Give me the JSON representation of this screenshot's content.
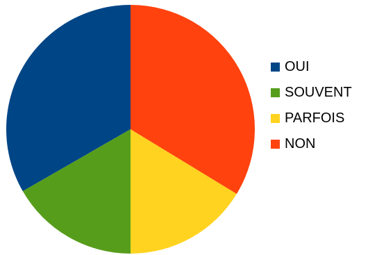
{
  "chart_data": {
    "type": "pie",
    "title": "",
    "series": [
      {
        "categories": [
          "OUI",
          "SOUVENT",
          "PARFOIS",
          "NON"
        ],
        "values": [
          33.3,
          16.7,
          16.3,
          33.7
        ],
        "unit": "%"
      }
    ],
    "colors": [
      "#004586",
      "#579d1c",
      "#ffd320",
      "#ff420e"
    ],
    "legend": {
      "position": "right",
      "items": [
        {
          "label": "OUI",
          "color": "#004586"
        },
        {
          "label": "SOUVENT",
          "color": "#579d1c"
        },
        {
          "label": "PARFOIS",
          "color": "#ffd320"
        },
        {
          "label": "NON",
          "color": "#ff420e"
        }
      ]
    },
    "start_angle": "12 o'clock",
    "direction": "counterclockwise"
  }
}
